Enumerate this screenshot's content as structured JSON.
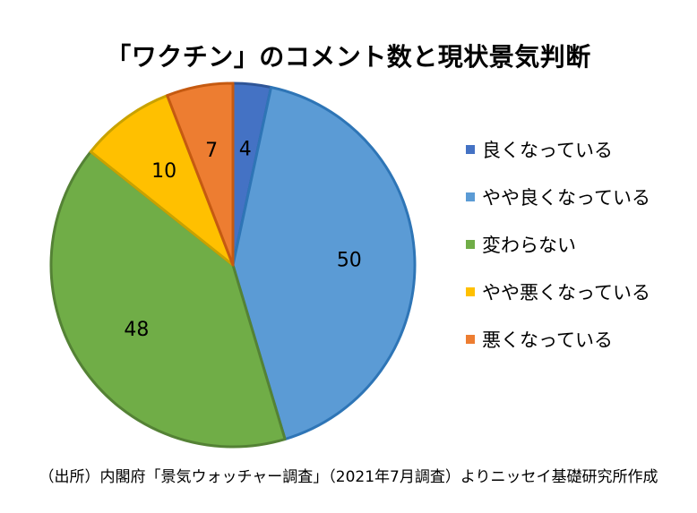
{
  "chart_data": {
    "type": "pie",
    "title": "「ワクチン」のコメント数と現状景気判断",
    "categories": [
      "良くなっている",
      "やや良くなっている",
      "変わらない",
      "やや悪くなっている",
      "悪くなっている"
    ],
    "values": [
      4,
      50,
      48,
      10,
      7
    ],
    "colors": [
      "#4472C4",
      "#5B9BD5",
      "#70AD47",
      "#FFC000",
      "#ED7D31"
    ],
    "edge_colors": [
      "#2F5597",
      "#2E75B6",
      "#548235",
      "#C9A200",
      "#C55A11"
    ],
    "start_angle": "12 o'clock, clockwise",
    "legend": "right"
  },
  "footnote": "（出所）内閣府「景気ウォッチャー調査」（2021年7月調査）よりニッセイ基礎研究所作成"
}
